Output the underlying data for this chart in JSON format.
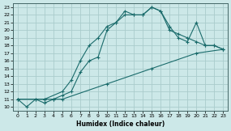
{
  "xlabel": "Humidex (Indice chaleur)",
  "background_color": "#cce8e8",
  "grid_color": "#aacccc",
  "line_color": "#1a6b6b",
  "xlim": [
    -0.5,
    23.5
  ],
  "ylim": [
    9.5,
    23.5
  ],
  "xticks": [
    0,
    1,
    2,
    3,
    4,
    5,
    6,
    7,
    8,
    9,
    10,
    11,
    12,
    13,
    14,
    15,
    16,
    17,
    18,
    19,
    20,
    21,
    22,
    23
  ],
  "yticks": [
    10,
    11,
    12,
    13,
    14,
    15,
    16,
    17,
    18,
    19,
    20,
    21,
    22,
    23
  ],
  "line1_x": [
    0,
    1,
    2,
    3,
    5,
    6,
    7,
    8,
    9,
    10,
    11,
    12,
    13,
    14,
    15,
    16,
    17,
    18,
    19,
    20,
    21,
    22,
    23
  ],
  "line1_y": [
    11,
    10,
    11,
    11,
    12,
    13.5,
    16,
    18,
    19,
    20.5,
    21,
    22.5,
    22,
    22,
    23,
    22.5,
    20.5,
    19,
    18.5,
    21,
    18,
    18,
    17.5
  ],
  "line2_x": [
    0,
    2,
    3,
    4,
    5,
    6,
    7,
    8,
    9,
    10,
    11,
    12,
    13,
    14,
    15,
    16,
    17,
    18,
    19,
    20,
    21,
    22,
    23
  ],
  "line2_y": [
    11,
    11,
    10.5,
    11,
    11.5,
    12,
    14.5,
    16,
    16.5,
    20,
    21,
    22,
    22,
    22,
    23,
    22.5,
    20,
    19.5,
    19,
    18.5,
    18,
    18,
    17.5
  ],
  "line3_x": [
    0,
    3,
    4,
    5,
    10,
    15,
    20,
    23
  ],
  "line3_y": [
    11,
    11,
    11,
    11,
    13,
    15,
    17,
    17.5
  ]
}
